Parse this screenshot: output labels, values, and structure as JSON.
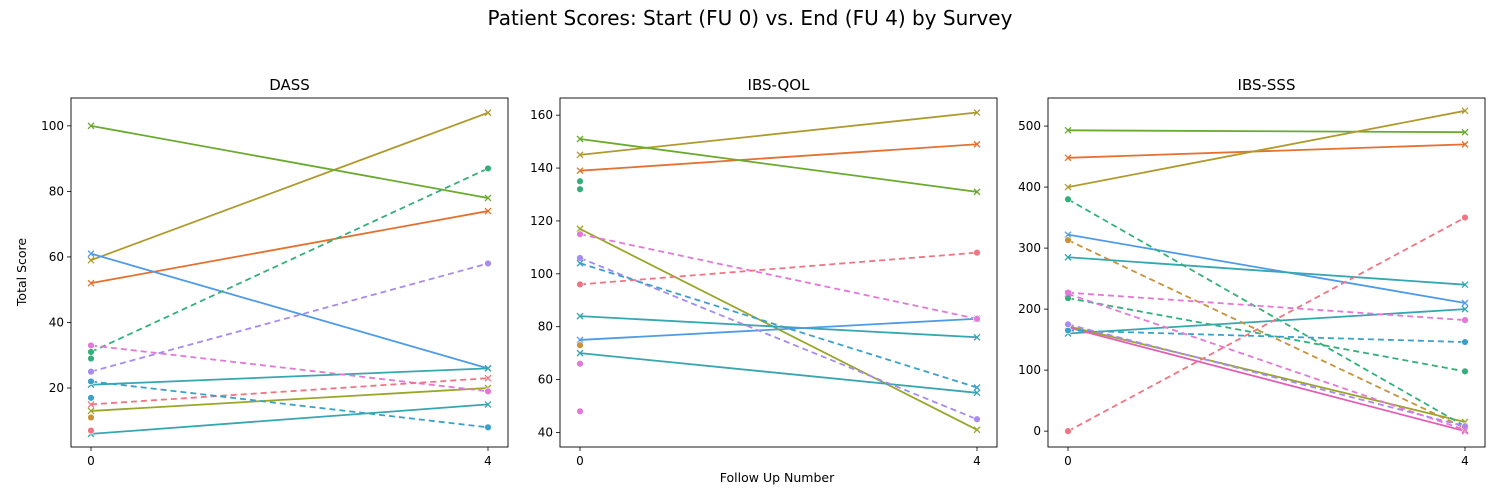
{
  "figure": {
    "title": "Patient Scores: Start (FU 0) vs. End (FU 4) by Survey",
    "xlabel": "Follow Up Number",
    "ylabel": "Total Score"
  },
  "chart_data": [
    {
      "type": "line",
      "title": "DASS",
      "xlabel": "",
      "ylabel": "Total Score",
      "x": [
        0,
        4
      ],
      "xticks": [
        "0",
        "4"
      ],
      "ylim": [
        2,
        108.5
      ],
      "yticks": [
        20,
        40,
        60,
        80,
        100
      ],
      "grid": false,
      "series": [
        {
          "values": [
            52,
            74
          ],
          "color": "#e5702f",
          "dash": "solid",
          "marker": "x"
        },
        {
          "values": [
            59,
            104
          ],
          "color": "#b09a2e",
          "dash": "solid",
          "marker": "x"
        },
        {
          "values": [
            100,
            78
          ],
          "color": "#6aaa2e",
          "dash": "solid",
          "marker": "x"
        },
        {
          "values": [
            61,
            26
          ],
          "color": "#4f9be8",
          "dash": "solid",
          "marker": "x"
        },
        {
          "values": [
            21,
            26
          ],
          "color": "#36a6b0",
          "dash": "solid",
          "marker": "x"
        },
        {
          "values": [
            6,
            15
          ],
          "color": "#36a6b0",
          "dash": "solid",
          "marker": "x"
        },
        {
          "values": [
            13,
            20
          ],
          "color": "#9aa62a",
          "dash": "solid",
          "marker": "x"
        },
        {
          "values": [
            31,
            87
          ],
          "color": "#33b07a",
          "dash": "dashed",
          "marker": "o"
        },
        {
          "values": [
            25,
            58
          ],
          "color": "#a78bf0",
          "dash": "dashed",
          "marker": "o"
        },
        {
          "values": [
            33,
            19
          ],
          "color": "#e378d8",
          "dash": "dashed",
          "marker": "o"
        },
        {
          "values": [
            15,
            23
          ],
          "color": "#f07583",
          "dash": "dashed",
          "marker": "x"
        },
        {
          "values": [
            22,
            8
          ],
          "color": "#3da0c8",
          "dash": "dashed",
          "marker": "o"
        }
      ],
      "single_points": [
        {
          "x": 0,
          "y": 29,
          "color": "#33b07a"
        },
        {
          "x": 0,
          "y": 11,
          "color": "#c8923a"
        },
        {
          "x": 0,
          "y": 7,
          "color": "#f07583"
        },
        {
          "x": 0,
          "y": 17,
          "color": "#3da0c8"
        }
      ]
    },
    {
      "type": "line",
      "title": "IBS-QOL",
      "xlabel": "Follow Up Number",
      "ylabel": "",
      "x": [
        0,
        4
      ],
      "xticks": [
        "0",
        "4"
      ],
      "ylim": [
        34.5,
        166.5
      ],
      "yticks": [
        40,
        60,
        80,
        100,
        120,
        140,
        160
      ],
      "grid": false,
      "series": [
        {
          "values": [
            139,
            149
          ],
          "color": "#e5702f",
          "dash": "solid",
          "marker": "x"
        },
        {
          "values": [
            145,
            161
          ],
          "color": "#b09a2e",
          "dash": "solid",
          "marker": "x"
        },
        {
          "values": [
            151,
            131
          ],
          "color": "#6aaa2e",
          "dash": "solid",
          "marker": "x"
        },
        {
          "values": [
            117,
            41
          ],
          "color": "#9aa62a",
          "dash": "solid",
          "marker": "x"
        },
        {
          "values": [
            84,
            76
          ],
          "color": "#36a6b0",
          "dash": "solid",
          "marker": "x"
        },
        {
          "values": [
            75,
            83
          ],
          "color": "#4f9be8",
          "dash": "solid",
          "marker": "x"
        },
        {
          "values": [
            70,
            55
          ],
          "color": "#36a6b0",
          "dash": "solid",
          "marker": "x"
        },
        {
          "values": [
            115,
            83
          ],
          "color": "#e378d8",
          "dash": "dashed",
          "marker": "o"
        },
        {
          "values": [
            106,
            45
          ],
          "color": "#a78bf0",
          "dash": "dashed",
          "marker": "o"
        },
        {
          "values": [
            104,
            57
          ],
          "color": "#3da0c8",
          "dash": "dashed",
          "marker": "x"
        },
        {
          "values": [
            96,
            108
          ],
          "color": "#f07583",
          "dash": "dashed",
          "marker": "o"
        }
      ],
      "single_points": [
        {
          "x": 0,
          "y": 135,
          "color": "#33b07a"
        },
        {
          "x": 0,
          "y": 132,
          "color": "#33b07a"
        },
        {
          "x": 0,
          "y": 73,
          "color": "#c8923a"
        },
        {
          "x": 0,
          "y": 66,
          "color": "#e378d8"
        },
        {
          "x": 0,
          "y": 48,
          "color": "#e378d8"
        }
      ]
    },
    {
      "type": "line",
      "title": "IBS-SSS",
      "xlabel": "",
      "ylabel": "",
      "x": [
        0,
        4
      ],
      "xticks": [
        "0",
        "4"
      ],
      "ylim": [
        -26,
        546
      ],
      "yticks": [
        0,
        100,
        200,
        300,
        400,
        500
      ],
      "grid": false,
      "series": [
        {
          "values": [
            493,
            490
          ],
          "color": "#6aaa2e",
          "dash": "solid",
          "marker": "x"
        },
        {
          "values": [
            448,
            470
          ],
          "color": "#e5702f",
          "dash": "solid",
          "marker": "x"
        },
        {
          "values": [
            400,
            525
          ],
          "color": "#b09a2e",
          "dash": "solid",
          "marker": "x"
        },
        {
          "values": [
            322,
            210
          ],
          "color": "#4f9be8",
          "dash": "solid",
          "marker": "x"
        },
        {
          "values": [
            285,
            240
          ],
          "color": "#36a6b0",
          "dash": "solid",
          "marker": "x"
        },
        {
          "values": [
            160,
            200
          ],
          "color": "#36a6b0",
          "dash": "solid",
          "marker": "x"
        },
        {
          "values": [
            172,
            15
          ],
          "color": "#9aa62a",
          "dash": "solid",
          "marker": "x"
        },
        {
          "values": [
            170,
            0
          ],
          "color": "#e35fb6",
          "dash": "solid",
          "marker": "x"
        },
        {
          "values": [
            380,
            8
          ],
          "color": "#33b07a",
          "dash": "dashed",
          "marker": "o"
        },
        {
          "values": [
            313,
            5
          ],
          "color": "#c8923a",
          "dash": "dashed",
          "marker": "o"
        },
        {
          "values": [
            227,
            182
          ],
          "color": "#e378d8",
          "dash": "dashed",
          "marker": "o"
        },
        {
          "values": [
            218,
            98
          ],
          "color": "#33b07a",
          "dash": "dashed",
          "marker": "o"
        },
        {
          "values": [
            165,
            146
          ],
          "color": "#3da0c8",
          "dash": "dashed",
          "marker": "o"
        },
        {
          "values": [
            175,
            8
          ],
          "color": "#a78bf0",
          "dash": "dashed",
          "marker": "o"
        },
        {
          "values": [
            225,
            2
          ],
          "color": "#e378d8",
          "dash": "dashed",
          "marker": "x"
        },
        {
          "values": [
            0,
            350
          ],
          "color": "#f07583",
          "dash": "dashed",
          "marker": "o"
        }
      ],
      "single_points": []
    }
  ]
}
